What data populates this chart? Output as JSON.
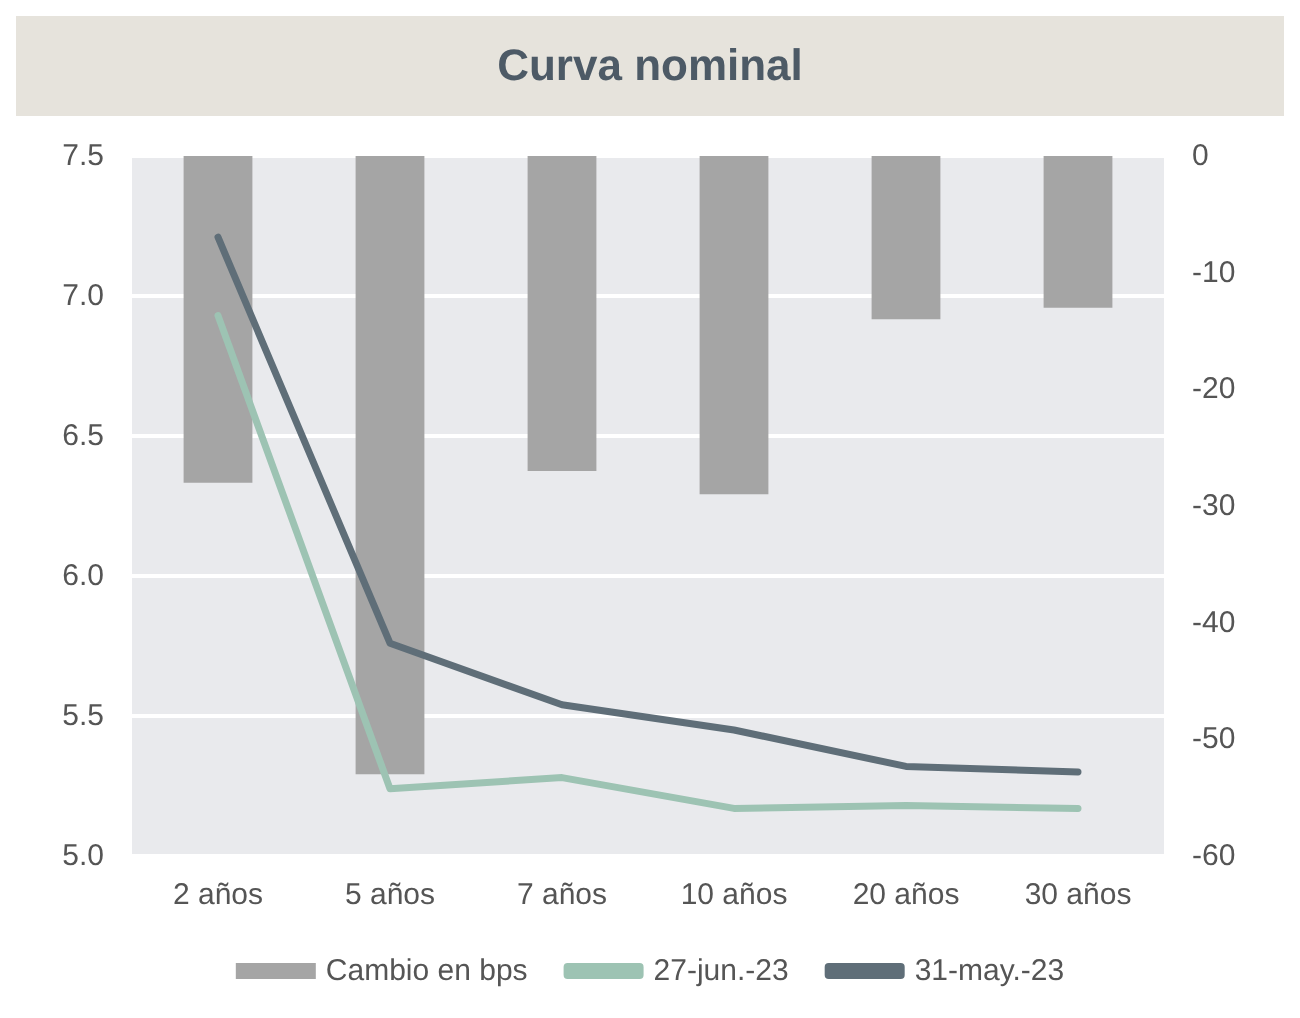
{
  "chart_data": {
    "type": "line",
    "title": "Curva nominal",
    "categories": [
      "2 años",
      "5 años",
      "7 años",
      "10 años",
      "20 años",
      "30 años"
    ],
    "series": [
      {
        "name": "Cambio en bps",
        "type": "bar",
        "axis": "y2",
        "color": "#a5a5a5",
        "values": [
          -28,
          -53,
          -27,
          -29,
          -14,
          -13
        ]
      },
      {
        "name": "27-jun.-23",
        "color": "#9dc3b3",
        "values": [
          6.93,
          5.24,
          5.28,
          5.17,
          5.18,
          5.17
        ]
      },
      {
        "name": "31-may.-23",
        "color": "#5f6e78",
        "values": [
          7.21,
          5.76,
          5.54,
          5.45,
          5.32,
          5.3
        ]
      }
    ],
    "ylim": [
      5.0,
      7.5
    ],
    "yticks": [
      {
        "value": 5,
        "label": "5.0"
      },
      5.5,
      {
        "value": 6,
        "label": "6.0"
      },
      6.5,
      {
        "value": 7,
        "label": "7.0"
      },
      7.5
    ],
    "y2lim": [
      -60,
      0
    ],
    "y2ticks": [
      -60,
      -50,
      -40,
      -30,
      -20,
      -10,
      0
    ],
    "grid": "y",
    "legend": "bottom",
    "marker": "none",
    "line_style": "solid"
  }
}
